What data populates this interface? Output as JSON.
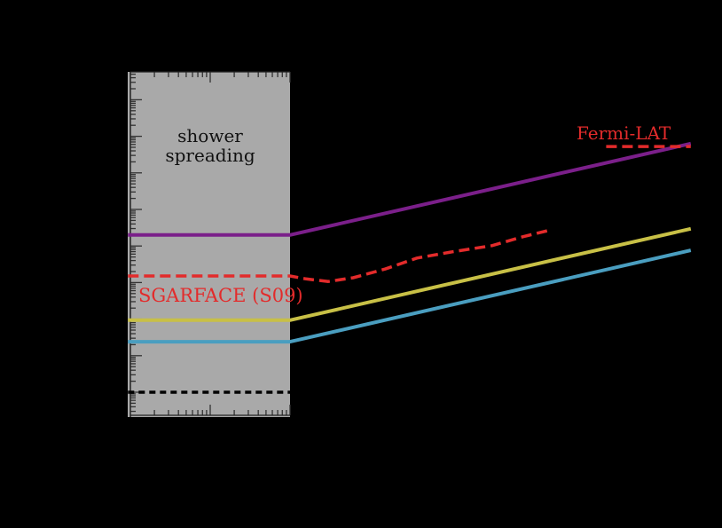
{
  "chart_data": {
    "type": "line",
    "title": "",
    "xlabel": "",
    "ylabel": "",
    "xscale": "log",
    "yscale": "log",
    "grid": false,
    "background": "#000000",
    "axes_note": "Axis lines, tick labels and axis titles are rendered in black on a black background and are not readable; values are given as log10 offsets (decades) from the left axis (x) and from the major tick coinciding with the black dashed line (y).",
    "x_decades_range": [
      0,
      7.04
    ],
    "y_decades_range": [
      -0.63,
      8.8
    ],
    "shaded_region": {
      "label_line1": "shower",
      "label_line2": "spreading",
      "x_decades": [
        -0.03,
        2.0
      ],
      "color": "#A9A9A9"
    },
    "series": [
      {
        "name": "purple",
        "color": "#7B1F8A",
        "style": "solid",
        "x_decades": [
          -0.03,
          2.0,
          7.02
        ],
        "y_decades": [
          4.3,
          4.3,
          6.8
        ]
      },
      {
        "name": "yellow",
        "color": "#C8C046",
        "style": "solid",
        "x_decades": [
          -0.03,
          2.0,
          7.02
        ],
        "y_decades": [
          1.97,
          1.97,
          4.47
        ]
      },
      {
        "name": "blue",
        "color": "#4A9EC0",
        "style": "solid",
        "x_decades": [
          -0.03,
          2.0,
          7.02
        ],
        "y_decades": [
          1.38,
          1.38,
          3.88
        ]
      },
      {
        "name": "SGARFACE (S09)",
        "color": "#E32B2B",
        "style": "dashed",
        "x_decades": [
          -0.03,
          2.0,
          2.2,
          2.48,
          2.79,
          3.19,
          3.59,
          4.03,
          4.53,
          4.91,
          5.23,
          5.23
        ],
        "y_decades": [
          3.18,
          3.18,
          3.1,
          3.03,
          3.13,
          3.37,
          3.67,
          3.84,
          4.01,
          4.25,
          4.42,
          4.42
        ]
      },
      {
        "name": "Fermi-LAT",
        "color": "#E32B2B",
        "style": "dashed",
        "x_decades": [
          5.96,
          7.02
        ],
        "y_decades": [
          6.72,
          6.72
        ]
      },
      {
        "name": "black-dashed",
        "color": "#000000",
        "style": "dashed",
        "x_decades": [
          -0.03,
          2.0
        ],
        "y_decades": [
          0.0,
          0.0
        ]
      }
    ],
    "annotations": [
      {
        "text": "SGARFACE (S09)",
        "color": "#E32B2B"
      },
      {
        "text": "Fermi-LAT",
        "color": "#E32B2B"
      },
      {
        "text": "shower spreading",
        "color": "#000000"
      }
    ]
  },
  "labels": {
    "shower_line1": "shower",
    "shower_line2": "spreading",
    "sgarface": "SGARFACE (S09)",
    "fermi": "Fermi-LAT"
  },
  "colors": {
    "background": "#000000",
    "shaded": "#A9A9A9",
    "purple": "#7B1F8A",
    "yellow": "#C8C046",
    "blue": "#4A9EC0",
    "red": "#E32B2B",
    "black": "#000000",
    "tick": "#333333"
  }
}
